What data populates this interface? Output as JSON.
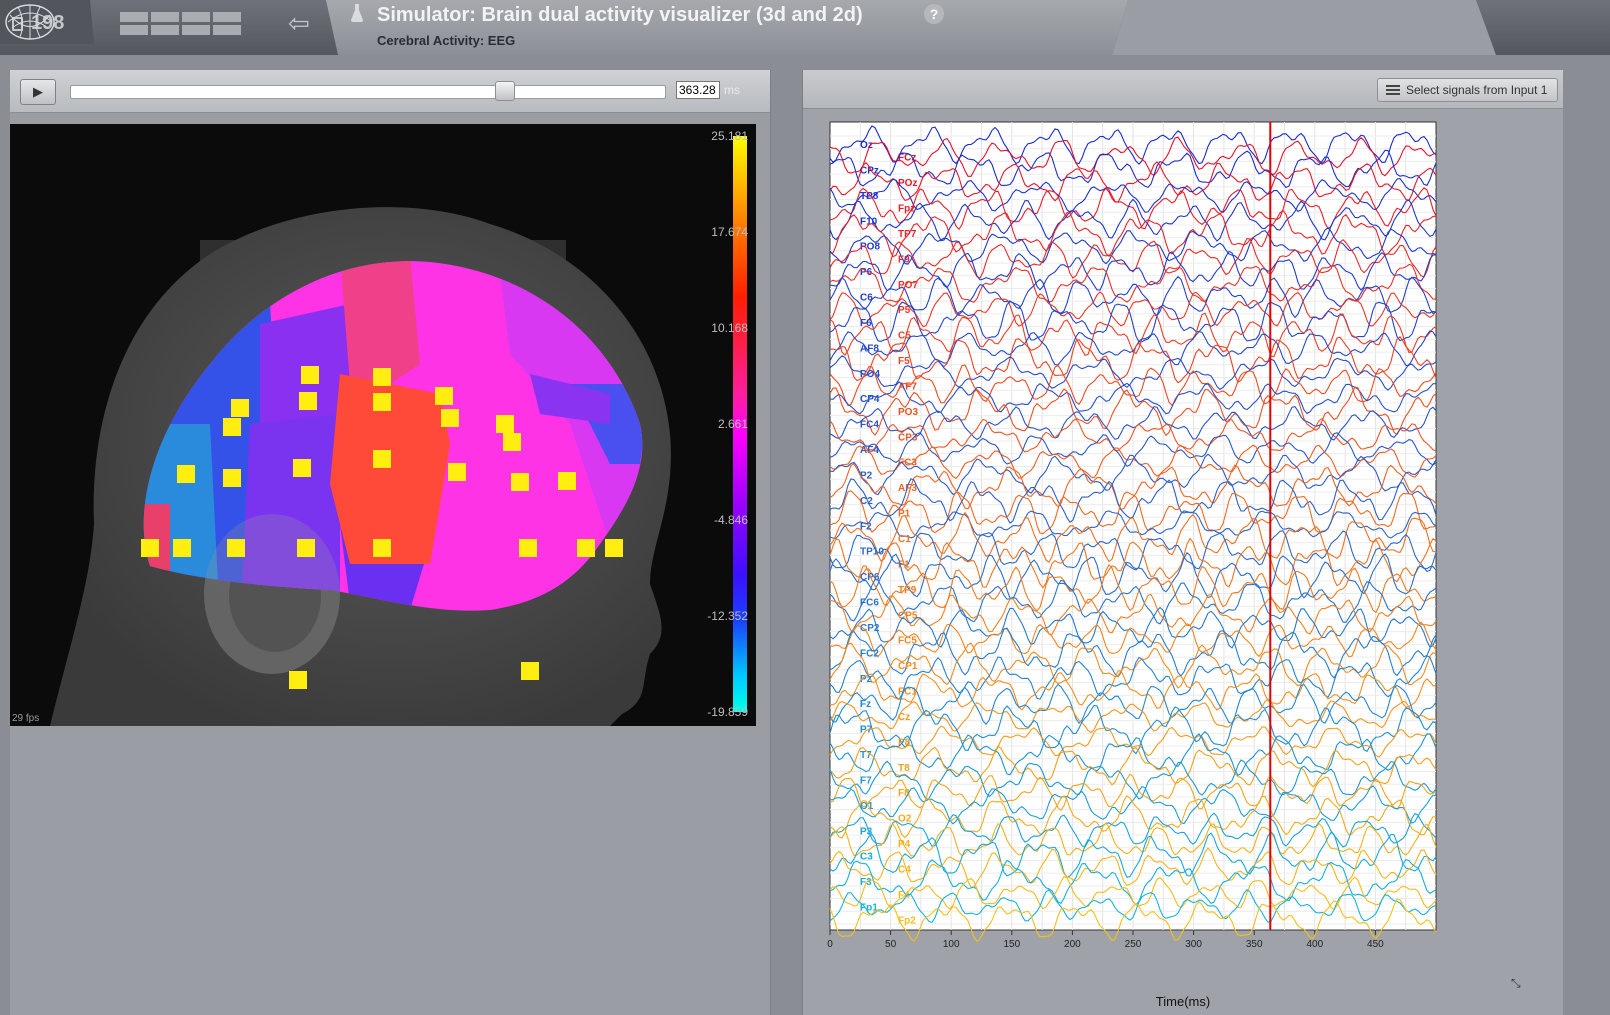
{
  "header": {
    "project_count": "198",
    "title": "Simulator: Brain dual activity visualizer (3d and 2d)",
    "subtitle": "Cerebral Activity: EEG",
    "help_label": "?"
  },
  "player": {
    "play_icon": "play-icon",
    "current_time": "363.28",
    "time_unit": "ms",
    "progress": 0.73
  },
  "viewer3d": {
    "fps": "29 fps",
    "scale_labels": [
      "25.181",
      "17.674",
      "10.168",
      "2.661",
      "-4.846",
      "-12.352",
      "-19.859"
    ],
    "colormap": [
      "#ffff00",
      "#ff8800",
      "#ff1e00",
      "#ff1ea0",
      "#ff00ff",
      "#aa00ff",
      "#3c10ff",
      "#1a40ff",
      "#00ccff",
      "#00ffe6"
    ]
  },
  "eeg_panel": {
    "select_button_label": "Select signals from Input 1",
    "x_axis_title": "Time(ms)",
    "x_ticks": [
      "0",
      "50",
      "100",
      "150",
      "200",
      "250",
      "300",
      "350",
      "400",
      "450"
    ],
    "cursor_time_ms": 363.28,
    "x_range_ms": [
      0,
      500
    ],
    "left_channels": [
      "Oz",
      "CPz",
      "TP8",
      "F10",
      "PO8",
      "P6",
      "C6",
      "F6",
      "AF8",
      "PO4",
      "CP4",
      "FC4",
      "AF4",
      "P2",
      "C2",
      "F2",
      "TP10",
      "CP6",
      "FC6",
      "CP2",
      "FC2",
      "Pz",
      "Fz",
      "P7",
      "T7",
      "F7",
      "O1",
      "P3",
      "C3",
      "F3",
      "Fp1"
    ],
    "right_channels": [
      "FCz",
      "POz",
      "Fpz",
      "TP7",
      "F9",
      "PO7",
      "P5",
      "C5",
      "F5",
      "AF7",
      "PO3",
      "CP3",
      "FC3",
      "AF3",
      "P1",
      "C1",
      "F1",
      "TP9",
      "CP5",
      "FC5",
      "CP1",
      "FC1",
      "Cz",
      "P8",
      "T8",
      "F8",
      "O2",
      "P4",
      "C4",
      "F4",
      "Fp2"
    ],
    "cursor_color": "#e00000"
  }
}
